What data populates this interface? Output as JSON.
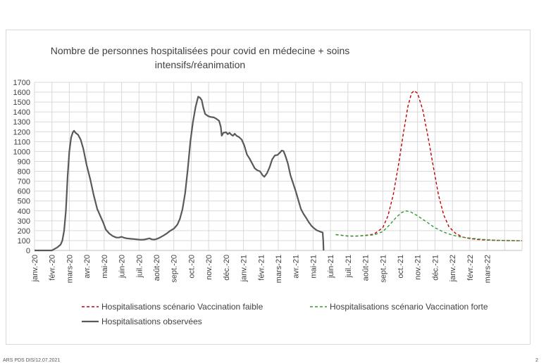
{
  "footer": {
    "left_text": "ARS PDS DIS/12.07.2021",
    "page_number": "2"
  },
  "chart_data": {
    "type": "line",
    "title": "Nombre de personnes hospitalisées pour covid en médecine + soins intensifs/réanimation",
    "title_lines": [
      "Nombre de personnes hospitalisées pour covid en médecine + soins",
      "intensifs/réanimation"
    ],
    "xlabel": "",
    "ylabel": "",
    "ylim": [
      0,
      1700
    ],
    "yticks": [
      0,
      100,
      200,
      300,
      400,
      500,
      600,
      700,
      800,
      900,
      1000,
      1100,
      1200,
      1300,
      1400,
      1500,
      1600,
      1700
    ],
    "x_range": [
      "janv.-20",
      "fin avr.-22"
    ],
    "x_domain_months": [
      0,
      28
    ],
    "categories": [
      "janv.-20",
      "févr.-20",
      "mars-20",
      "avr.-20",
      "mai-20",
      "juin-20",
      "juil.-20",
      "août-20",
      "sept.-20",
      "oct.-20",
      "nov.-20",
      "déc.-20",
      "janv.-21",
      "févr.-21",
      "mars-21",
      "avr.-21",
      "mai-21",
      "juin-21",
      "juil.-21",
      "août-21",
      "sept.-21",
      "oct.-21",
      "nov.-21",
      "déc.-21",
      "janv.-22",
      "févr.-22",
      "mars-22"
    ],
    "grid": true,
    "legend_position": "bottom",
    "series": [
      {
        "name": "Hospitalisations scénario Vaccination faible",
        "color": "#c00000",
        "style": "dashed",
        "points": [
          [
            17.3,
            160
          ],
          [
            18,
            145
          ],
          [
            18.5,
            145
          ],
          [
            19,
            152
          ],
          [
            19.5,
            165
          ],
          [
            20,
            230
          ],
          [
            20.3,
            350
          ],
          [
            20.6,
            560
          ],
          [
            20.9,
            860
          ],
          [
            21.2,
            1200
          ],
          [
            21.45,
            1460
          ],
          [
            21.65,
            1590
          ],
          [
            21.8,
            1615
          ],
          [
            22,
            1590
          ],
          [
            22.3,
            1420
          ],
          [
            22.6,
            1150
          ],
          [
            22.9,
            850
          ],
          [
            23.2,
            560
          ],
          [
            23.5,
            360
          ],
          [
            23.8,
            240
          ],
          [
            24.2,
            170
          ],
          [
            24.6,
            135
          ],
          [
            25,
            120
          ],
          [
            25.5,
            110
          ],
          [
            26,
            105
          ],
          [
            26.5,
            102
          ],
          [
            27,
            100
          ],
          [
            27.5,
            99
          ],
          [
            28,
            98
          ]
        ]
      },
      {
        "name": "Hospitalisations scénario Vaccination forte",
        "color": "#339933",
        "style": "dashed",
        "points": [
          [
            17.3,
            160
          ],
          [
            18,
            145
          ],
          [
            18.5,
            145
          ],
          [
            19,
            150
          ],
          [
            19.5,
            158
          ],
          [
            20,
            190
          ],
          [
            20.4,
            260
          ],
          [
            20.8,
            340
          ],
          [
            21.1,
            385
          ],
          [
            21.35,
            400
          ],
          [
            21.6,
            390
          ],
          [
            22,
            350
          ],
          [
            22.5,
            290
          ],
          [
            23,
            230
          ],
          [
            23.5,
            185
          ],
          [
            24,
            155
          ],
          [
            24.5,
            135
          ],
          [
            25,
            125
          ],
          [
            25.5,
            115
          ],
          [
            26,
            108
          ],
          [
            26.5,
            104
          ],
          [
            27,
            101
          ],
          [
            27.5,
            99
          ],
          [
            28,
            98
          ]
        ]
      },
      {
        "name": "Hospitalisations observées",
        "color": "#595959",
        "style": "solid",
        "points": [
          [
            0,
            0
          ],
          [
            0.5,
            0
          ],
          [
            1,
            0
          ],
          [
            1.1,
            10
          ],
          [
            1.3,
            30
          ],
          [
            1.5,
            60
          ],
          [
            1.6,
            100
          ],
          [
            1.7,
            200
          ],
          [
            1.8,
            400
          ],
          [
            1.9,
            750
          ],
          [
            2.0,
            1000
          ],
          [
            2.1,
            1140
          ],
          [
            2.2,
            1195
          ],
          [
            2.27,
            1210
          ],
          [
            2.35,
            1190
          ],
          [
            2.5,
            1170
          ],
          [
            2.65,
            1120
          ],
          [
            2.8,
            1030
          ],
          [
            3.0,
            860
          ],
          [
            3.2,
            720
          ],
          [
            3.4,
            560
          ],
          [
            3.6,
            420
          ],
          [
            3.8,
            340
          ],
          [
            3.95,
            280
          ],
          [
            4.1,
            210
          ],
          [
            4.3,
            170
          ],
          [
            4.5,
            145
          ],
          [
            4.7,
            130
          ],
          [
            4.85,
            130
          ],
          [
            5.0,
            138
          ],
          [
            5.15,
            128
          ],
          [
            5.3,
            122
          ],
          [
            5.5,
            118
          ],
          [
            5.7,
            115
          ],
          [
            5.9,
            112
          ],
          [
            6.1,
            108
          ],
          [
            6.3,
            110
          ],
          [
            6.5,
            118
          ],
          [
            6.6,
            122
          ],
          [
            6.75,
            112
          ],
          [
            6.9,
            110
          ],
          [
            7.05,
            118
          ],
          [
            7.2,
            130
          ],
          [
            7.4,
            150
          ],
          [
            7.6,
            172
          ],
          [
            7.8,
            200
          ],
          [
            8.0,
            220
          ],
          [
            8.2,
            260
          ],
          [
            8.35,
            320
          ],
          [
            8.5,
            420
          ],
          [
            8.65,
            580
          ],
          [
            8.8,
            820
          ],
          [
            8.95,
            1100
          ],
          [
            9.1,
            1300
          ],
          [
            9.25,
            1450
          ],
          [
            9.4,
            1555
          ],
          [
            9.5,
            1545
          ],
          [
            9.6,
            1520
          ],
          [
            9.7,
            1440
          ],
          [
            9.8,
            1380
          ],
          [
            9.95,
            1360
          ],
          [
            10.1,
            1350
          ],
          [
            10.3,
            1345
          ],
          [
            10.45,
            1330
          ],
          [
            10.6,
            1310
          ],
          [
            10.7,
            1250
          ],
          [
            10.75,
            1160
          ],
          [
            10.85,
            1190
          ],
          [
            11.0,
            1195
          ],
          [
            11.1,
            1175
          ],
          [
            11.2,
            1190
          ],
          [
            11.3,
            1170
          ],
          [
            11.4,
            1160
          ],
          [
            11.5,
            1180
          ],
          [
            11.6,
            1160
          ],
          [
            11.75,
            1145
          ],
          [
            11.9,
            1120
          ],
          [
            12.05,
            1060
          ],
          [
            12.2,
            970
          ],
          [
            12.35,
            930
          ],
          [
            12.5,
            880
          ],
          [
            12.65,
            830
          ],
          [
            12.8,
            810
          ],
          [
            12.95,
            800
          ],
          [
            13.1,
            760
          ],
          [
            13.2,
            745
          ],
          [
            13.35,
            780
          ],
          [
            13.5,
            840
          ],
          [
            13.65,
            920
          ],
          [
            13.8,
            960
          ],
          [
            13.95,
            965
          ],
          [
            14.1,
            990
          ],
          [
            14.2,
            1010
          ],
          [
            14.3,
            1005
          ],
          [
            14.4,
            960
          ],
          [
            14.55,
            880
          ],
          [
            14.7,
            760
          ],
          [
            14.85,
            680
          ],
          [
            15.0,
            600
          ],
          [
            15.15,
            510
          ],
          [
            15.3,
            420
          ],
          [
            15.45,
            370
          ],
          [
            15.6,
            330
          ],
          [
            15.75,
            285
          ],
          [
            15.9,
            250
          ],
          [
            16.05,
            225
          ],
          [
            16.2,
            205
          ],
          [
            16.4,
            190
          ],
          [
            16.55,
            182
          ],
          [
            16.58,
            100
          ],
          [
            16.6,
            0
          ]
        ]
      }
    ]
  }
}
